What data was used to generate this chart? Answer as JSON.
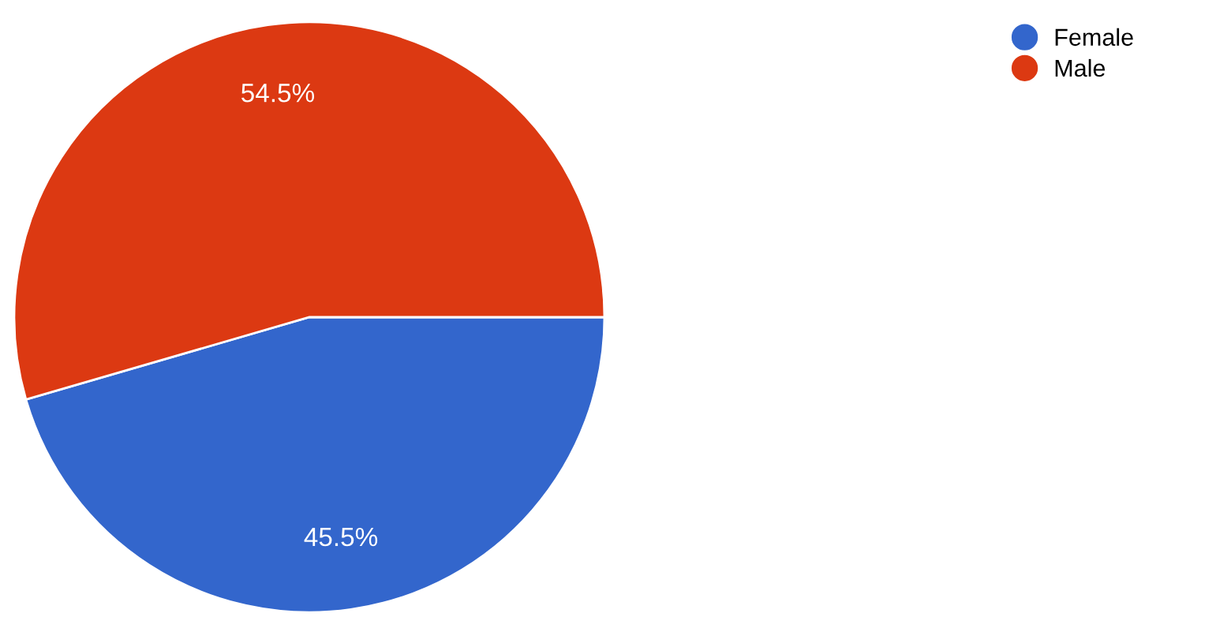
{
  "chart_data": {
    "type": "pie",
    "categories": [
      "Female",
      "Male"
    ],
    "values": [
      45.5,
      54.5
    ],
    "colors": [
      "#3366cc",
      "#dc3912"
    ],
    "value_labels": [
      "45.5%",
      "54.5%"
    ],
    "legend": "top right"
  }
}
